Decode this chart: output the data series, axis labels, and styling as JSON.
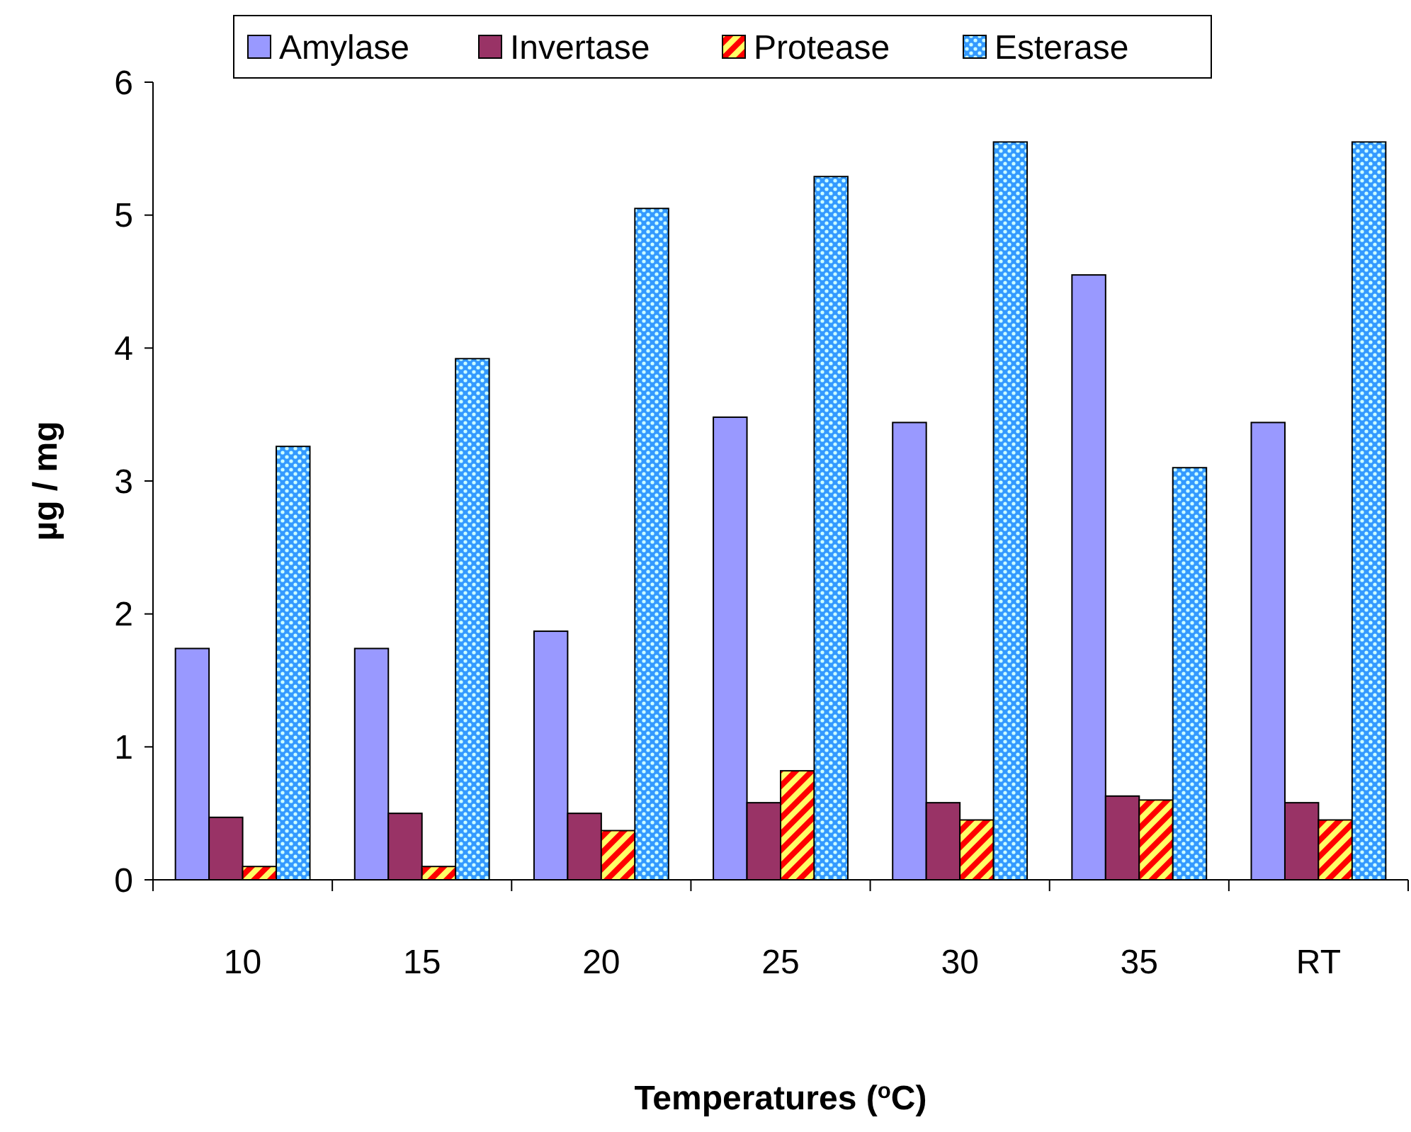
{
  "chart_data": {
    "type": "bar",
    "xlabel": "Temperatures ($^{o}$C)",
    "ylabel": "µg / mg",
    "categories": [
      "10",
      "15",
      "20",
      "25",
      "30",
      "35",
      "RT"
    ],
    "series": [
      {
        "name": "Amylase",
        "color": "#9999ff",
        "values": [
          1.74,
          1.74,
          1.87,
          3.48,
          3.44,
          4.55,
          3.44
        ]
      },
      {
        "name": "Invertase",
        "color": "#993366",
        "values": [
          0.47,
          0.5,
          0.5,
          0.58,
          0.58,
          0.63,
          0.58
        ]
      },
      {
        "name": "Protease",
        "color": "#ff0000",
        "values": [
          0.1,
          0.1,
          0.37,
          0.82,
          0.45,
          0.6,
          0.45
        ]
      },
      {
        "name": "Esterase",
        "color": "#3399ff",
        "values": [
          3.26,
          3.92,
          5.05,
          5.29,
          5.55,
          3.1,
          5.55
        ]
      }
    ],
    "ylim": [
      0,
      6
    ],
    "yticks": [
      0,
      1,
      2,
      3,
      4,
      5,
      6
    ],
    "grid": false,
    "legend": "top"
  }
}
